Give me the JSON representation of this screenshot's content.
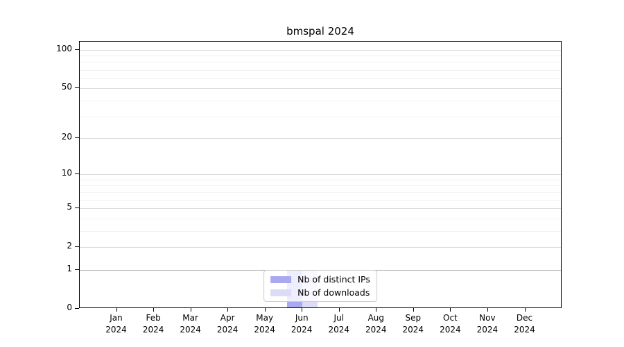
{
  "page": {
    "background": "#ffffff"
  },
  "chart_data": {
    "type": "bar",
    "title": "bmspal 2024",
    "categories": [
      "Jan",
      "Feb",
      "Mar",
      "Apr",
      "May",
      "Jun",
      "Jul",
      "Aug",
      "Sep",
      "Oct",
      "Nov",
      "Dec"
    ],
    "x_year": "2024",
    "series": [
      {
        "name": "Nb of distinct IPs",
        "color": "#a9a9f0",
        "values": [
          0,
          0,
          0,
          0,
          0,
          1,
          0,
          0,
          0,
          0,
          0,
          0
        ]
      },
      {
        "name": "Nb of downloads",
        "color": "#dcdcf8",
        "values": [
          0,
          0,
          0,
          0,
          0,
          1,
          0,
          0,
          0,
          0,
          0,
          0
        ]
      }
    ],
    "y_axis": {
      "scale": "log10(1+v)",
      "range": [
        0,
        100
      ],
      "ticks": [
        0,
        1,
        2,
        5,
        10,
        20,
        50,
        100
      ],
      "minor_gridlines": [
        3,
        4,
        6,
        7,
        8,
        9,
        30,
        40,
        60,
        70,
        80,
        90
      ],
      "emphasized_gridlines": [
        1
      ]
    },
    "legend": {
      "position": "bottom-center"
    },
    "grid": true,
    "axis_color": "#000000"
  }
}
